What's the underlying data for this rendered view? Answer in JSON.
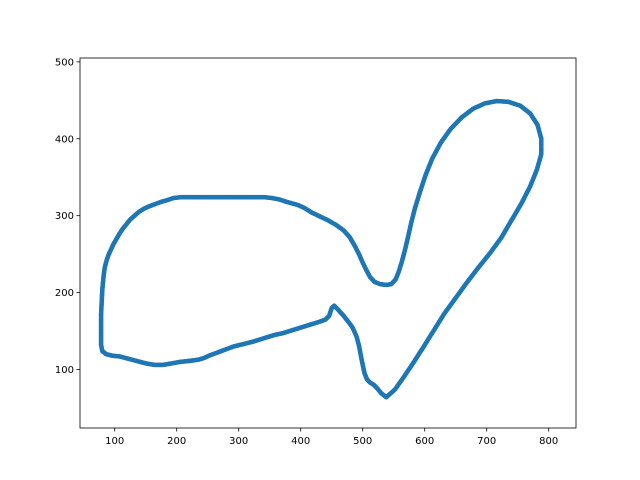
{
  "chart_data": {
    "type": "scatter",
    "title": "",
    "xlabel": "",
    "ylabel": "",
    "xlim": [
      44,
      844
    ],
    "ylim": [
      24,
      505
    ],
    "xticks": [
      100,
      200,
      300,
      400,
      500,
      600,
      700,
      800
    ],
    "yticks": [
      100,
      200,
      300,
      400,
      500
    ],
    "grid": false,
    "legend": "none",
    "series": [
      {
        "color": "#1f77b4",
        "shape": "lizard-outline",
        "outline": [
          [
            538,
            64
          ],
          [
            552,
            74
          ],
          [
            566,
            90
          ],
          [
            581,
            108
          ],
          [
            597,
            128
          ],
          [
            614,
            150
          ],
          [
            631,
            172
          ],
          [
            649,
            192
          ],
          [
            667,
            212
          ],
          [
            686,
            232
          ],
          [
            706,
            252
          ],
          [
            724,
            272
          ],
          [
            740,
            294
          ],
          [
            756,
            316
          ],
          [
            770,
            338
          ],
          [
            781,
            360
          ],
          [
            788,
            380
          ],
          [
            788,
            400
          ],
          [
            782,
            418
          ],
          [
            770,
            433
          ],
          [
            754,
            443
          ],
          [
            735,
            448
          ],
          [
            716,
            449
          ],
          [
            697,
            446
          ],
          [
            678,
            439
          ],
          [
            660,
            428
          ],
          [
            642,
            413
          ],
          [
            626,
            395
          ],
          [
            612,
            374
          ],
          [
            601,
            352
          ],
          [
            592,
            330
          ],
          [
            584,
            309
          ],
          [
            578,
            290
          ],
          [
            573,
            272
          ],
          [
            568,
            255
          ],
          [
            563,
            240
          ],
          [
            558,
            227
          ],
          [
            553,
            217
          ],
          [
            546,
            211
          ],
          [
            538,
            210
          ],
          [
            528,
            211
          ],
          [
            519,
            214
          ],
          [
            512,
            220
          ],
          [
            506,
            229
          ],
          [
            500,
            239
          ],
          [
            494,
            250
          ],
          [
            487,
            261
          ],
          [
            479,
            272
          ],
          [
            469,
            281
          ],
          [
            457,
            288
          ],
          [
            444,
            294
          ],
          [
            431,
            299
          ],
          [
            418,
            304
          ],
          [
            406,
            310
          ],
          [
            395,
            314
          ],
          [
            386,
            316
          ],
          [
            377,
            318
          ],
          [
            366,
            321
          ],
          [
            353,
            323
          ],
          [
            342,
            324
          ],
          [
            331,
            324
          ],
          [
            320,
            324
          ],
          [
            309,
            324
          ],
          [
            298,
            324
          ],
          [
            287,
            324
          ],
          [
            276,
            324
          ],
          [
            264,
            324
          ],
          [
            252,
            324
          ],
          [
            240,
            324
          ],
          [
            228,
            324
          ],
          [
            216,
            324
          ],
          [
            206,
            324
          ],
          [
            195,
            323
          ],
          [
            184,
            320
          ],
          [
            175,
            318
          ],
          [
            165,
            315
          ],
          [
            155,
            312
          ],
          [
            147,
            309
          ],
          [
            139,
            305
          ],
          [
            132,
            300
          ],
          [
            125,
            295
          ],
          [
            119,
            289
          ],
          [
            113,
            283
          ],
          [
            108,
            277
          ],
          [
            103,
            270
          ],
          [
            98,
            263
          ],
          [
            94,
            256
          ],
          [
            90,
            249
          ],
          [
            87,
            242
          ],
          [
            84,
            233
          ],
          [
            82,
            221
          ],
          [
            80,
            204
          ],
          [
            79,
            188
          ],
          [
            78,
            172
          ],
          [
            78,
            158
          ],
          [
            78,
            144
          ],
          [
            78,
            132
          ],
          [
            80,
            124
          ],
          [
            86,
            120
          ],
          [
            96,
            118
          ],
          [
            108,
            117
          ],
          [
            122,
            114
          ],
          [
            136,
            111
          ],
          [
            150,
            108
          ],
          [
            164,
            106
          ],
          [
            178,
            106
          ],
          [
            192,
            108
          ],
          [
            206,
            110
          ],
          [
            218,
            111
          ],
          [
            228,
            112
          ],
          [
            236,
            113
          ],
          [
            244,
            115
          ],
          [
            252,
            118
          ],
          [
            262,
            121
          ],
          [
            272,
            124
          ],
          [
            282,
            127
          ],
          [
            292,
            130
          ],
          [
            302,
            132
          ],
          [
            312,
            134
          ],
          [
            322,
            136
          ],
          [
            334,
            139
          ],
          [
            346,
            142
          ],
          [
            358,
            145
          ],
          [
            370,
            147
          ],
          [
            382,
            150
          ],
          [
            394,
            153
          ],
          [
            406,
            156
          ],
          [
            418,
            159
          ],
          [
            430,
            162
          ],
          [
            440,
            165
          ],
          [
            446,
            170
          ],
          [
            448,
            175
          ],
          [
            450,
            180
          ],
          [
            454,
            183
          ],
          [
            460,
            178
          ],
          [
            468,
            171
          ],
          [
            476,
            163
          ],
          [
            484,
            154
          ],
          [
            490,
            143
          ],
          [
            494,
            131
          ],
          [
            497,
            118
          ],
          [
            500,
            106
          ],
          [
            503,
            95
          ],
          [
            507,
            87
          ],
          [
            512,
            83
          ],
          [
            518,
            80
          ],
          [
            524,
            75
          ],
          [
            530,
            69
          ],
          [
            538,
            64
          ]
        ]
      }
    ]
  }
}
